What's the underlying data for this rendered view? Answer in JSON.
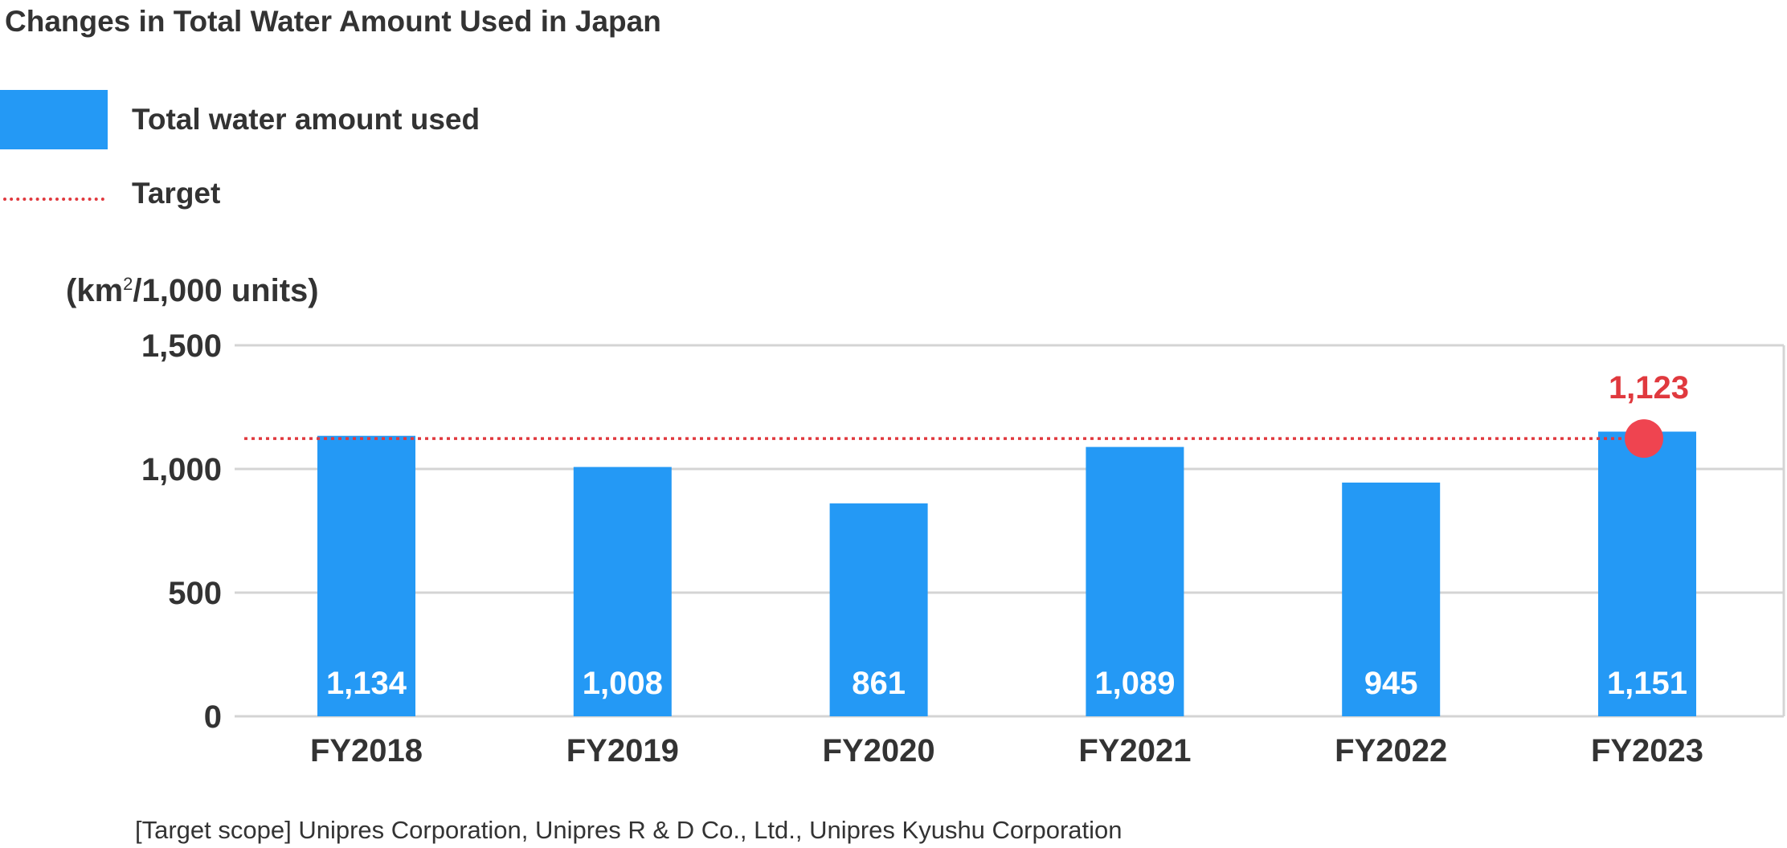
{
  "chart_data": {
    "type": "bar",
    "title": "Changes in Total Water Amount Used in Japan",
    "ylabel_prefix": "(km",
    "ylabel_sup": "2",
    "ylabel_suffix": "/1,000 units)",
    "categories": [
      "FY2018",
      "FY2019",
      "FY2020",
      "FY2021",
      "FY2022",
      "FY2023"
    ],
    "series": [
      {
        "name": "Total water amount used",
        "values": [
          1134,
          1008,
          861,
          1089,
          945,
          1151
        ],
        "data_labels": [
          "1,134",
          "1,008",
          "861",
          "1,089",
          "945",
          "1,151"
        ],
        "color": "#2499f5"
      }
    ],
    "target": {
      "name": "Target",
      "value": 1123,
      "label": "1,123",
      "marker_category": "FY2023",
      "color": "#e0393e"
    },
    "ylim": [
      0,
      1500
    ],
    "yticks": [
      0,
      500,
      1000,
      1500
    ],
    "ytick_labels": [
      "0",
      "500",
      "1,000",
      "1,500"
    ],
    "grid": true,
    "legend_position": "top-left"
  },
  "footnote": "[Target scope] Unipres Corporation, Unipres R & D Co., Ltd., Unipres Kyushu Corporation"
}
